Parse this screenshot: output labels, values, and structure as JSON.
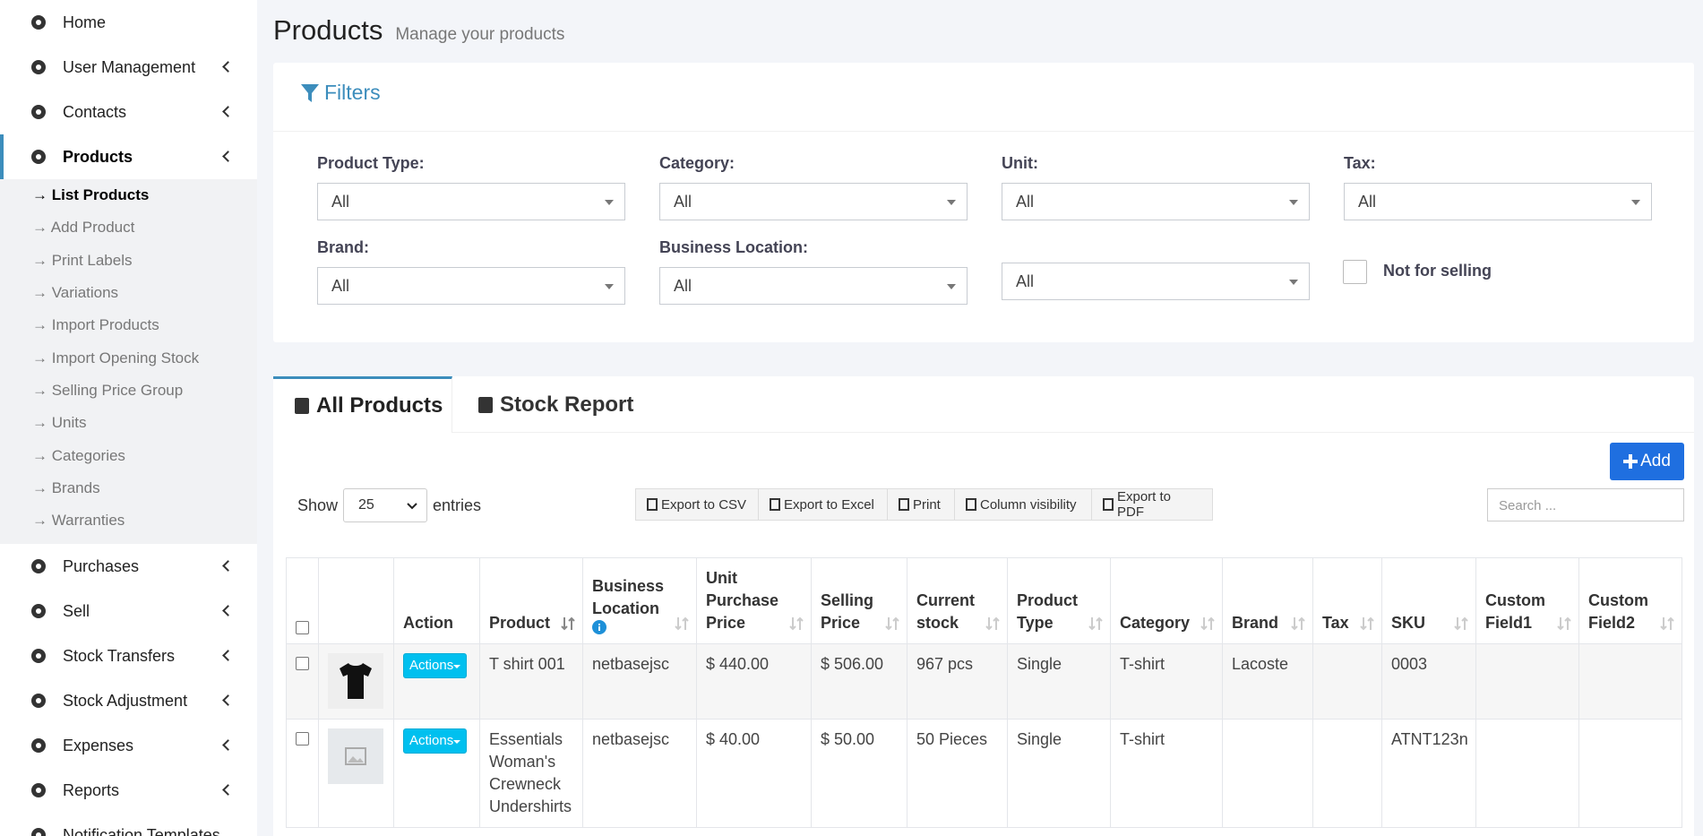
{
  "sidebar": {
    "items": [
      {
        "label": "Home"
      },
      {
        "label": "User Management",
        "arrow": true
      },
      {
        "label": "Contacts",
        "arrow": true
      },
      {
        "label": "Products",
        "arrow": true,
        "submenu": [
          "→ List Products",
          "→ Add Product",
          "→ Print Labels",
          "→ Variations",
          "→ Import Products",
          "→ Import Opening Stock",
          "→ Selling Price Group",
          "→ Units",
          "→ Categories",
          "→ Brands",
          "→ Warranties"
        ]
      },
      {
        "label": "Purchases",
        "arrow": true
      },
      {
        "label": "Sell",
        "arrow": true
      },
      {
        "label": "Stock Transfers",
        "arrow": true
      },
      {
        "label": "Stock Adjustment",
        "arrow": true
      },
      {
        "label": "Expenses",
        "arrow": true
      },
      {
        "label": "Reports",
        "arrow": true
      },
      {
        "label": "Notification Templates"
      }
    ]
  },
  "header": {
    "title": "Products",
    "subtitle": "Manage your products"
  },
  "filters": {
    "title": "Filters",
    "fields": [
      {
        "label": "Product Type:",
        "value": "All"
      },
      {
        "label": "Category:",
        "value": "All"
      },
      {
        "label": "Unit:",
        "value": "All"
      },
      {
        "label": "Tax:",
        "value": "All"
      },
      {
        "label": "Brand:",
        "value": "All"
      },
      {
        "label": "Business Location:",
        "value": "All"
      },
      {
        "value": "All"
      }
    ],
    "checkbox": "Not for selling"
  },
  "tabs": [
    "All Products",
    "Stock Report"
  ],
  "add_button": "Add",
  "length": {
    "prefix": "Show",
    "value": "25",
    "suffix": "entries"
  },
  "exports": [
    "Export to CSV",
    "Export to Excel",
    "Print",
    "Column visibility",
    "Export to PDF"
  ],
  "search_placeholder": "Search ...",
  "table": {
    "columns": [
      "Action",
      "Product",
      "Business Location",
      "Unit Purchase Price",
      "Selling Price",
      "Current stock",
      "Product Type",
      "Category",
      "Brand",
      "Tax",
      "SKU",
      "Custom Field1",
      "Custom Field2"
    ],
    "rows": [
      [
        "Actions",
        "T shirt 001",
        "netbasejsc",
        "$ 440.00",
        "$ 506.00",
        "967 pcs",
        "Single",
        "T-shirt",
        "Lacoste",
        null,
        "0003",
        null,
        null
      ],
      [
        "Actions",
        "Essentials Woman's Crewneck Undershirts",
        "netbasejsc",
        "$ 40.00",
        "$ 50.00",
        "50 Pieces",
        "Single",
        "T-shirt",
        null,
        null,
        "ATNT123n",
        null,
        null
      ]
    ]
  }
}
